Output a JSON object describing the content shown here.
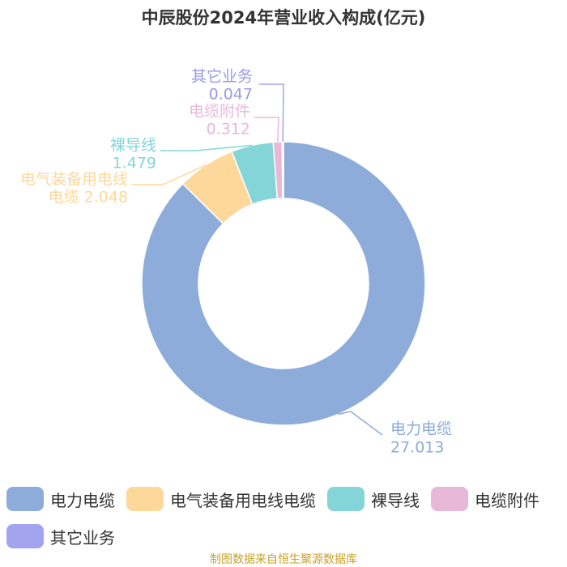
{
  "chart_data": {
    "type": "pie",
    "variant": "donut",
    "title": "中辰股份2024年营业收入构成(亿元)",
    "source": "制图数据来自恒生聚源数据库",
    "legend_position": "bottom",
    "categories": [
      "电力电缆",
      "电气装备用电线电缆",
      "裸导线",
      "电缆附件",
      "其它业务"
    ],
    "values": [
      27.013,
      2.048,
      1.479,
      0.312,
      0.047
    ],
    "value_labels": [
      "27.013",
      "2.048",
      "1.479",
      "0.312",
      "0.047"
    ],
    "colors": [
      "#8eacda",
      "#fdd89a",
      "#83d5d7",
      "#e8b8d8",
      "#a3a3f0"
    ],
    "label_colors": [
      "#8eacda",
      "#fdd89a",
      "#83d5d7",
      "#e8b8d8",
      "#9a9ae8"
    ]
  }
}
